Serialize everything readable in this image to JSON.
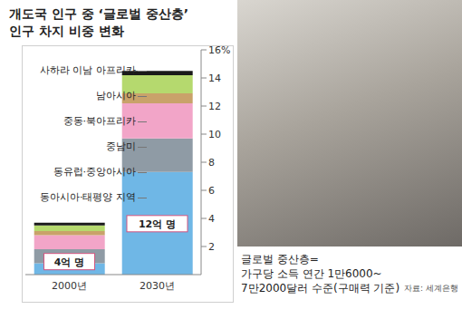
{
  "chart_data": {
    "type": "bar",
    "stacked": true,
    "grid": false,
    "title": "개도국 인구 중 ‘글로벌 중산층’ 인구 차지 비중 변화",
    "categories": [
      "2000년",
      "2030년"
    ],
    "series": [
      {
        "name": "동아시아·태평양 지역",
        "color": "#6fb7e6",
        "values": [
          0.8,
          7.3
        ]
      },
      {
        "name": "동유럽·중앙아시아",
        "color": "#8f9ba5",
        "values": [
          1.0,
          2.4
        ]
      },
      {
        "name": "중남미",
        "color": "#f2a5c8",
        "values": [
          1.0,
          2.5
        ]
      },
      {
        "name": "중동·북아프리카",
        "color": "#c9a26a",
        "values": [
          0.3,
          0.7
        ]
      },
      {
        "name": "남아시아",
        "color": "#b5d96e",
        "values": [
          0.4,
          1.3
        ]
      },
      {
        "name": "사하라 이남 아프리카",
        "color": "#1a1a1a",
        "values": [
          0.2,
          0.3
        ]
      }
    ],
    "ylim": [
      0,
      16
    ],
    "yticks": [
      2,
      4,
      6,
      8,
      10,
      12,
      14,
      {
        "value": 16,
        "label": "16%"
      }
    ],
    "annotations": [
      {
        "category": "2000년",
        "text": "4억 명"
      },
      {
        "category": "2030년",
        "text": "12억 명"
      }
    ],
    "note": [
      "글로벌 중산층=",
      "가구당 소득 연간 1만6000~",
      "7만2000달러 수준(구매력 기준)"
    ],
    "source": "자료: 세계은행"
  }
}
